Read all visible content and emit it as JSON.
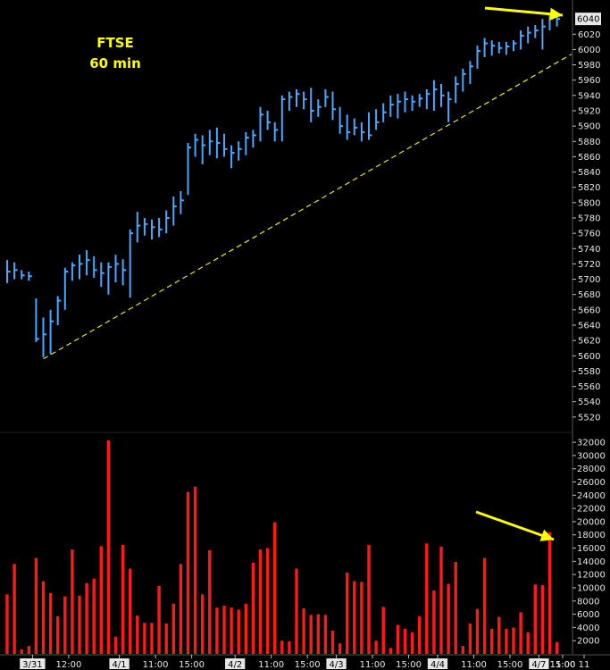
{
  "chart_data": [
    {
      "type": "bar",
      "title": "FTSE",
      "subtitle": "60 min",
      "ohlc_style": "hlc-bars",
      "ylim": [
        5500,
        6060
      ],
      "y_ticks": [
        5520,
        5540,
        5560,
        5580,
        5600,
        5620,
        5640,
        5660,
        5680,
        5700,
        5720,
        5740,
        5760,
        5780,
        5800,
        5820,
        5840,
        5860,
        5880,
        5900,
        5920,
        5940,
        5960,
        5980,
        6000,
        6020
      ],
      "last_price_label": "6040",
      "series": [
        {
          "values": [
            {
              "high": 5725,
              "low": 5695,
              "close": 5710
            },
            {
              "high": 5722,
              "low": 5700,
              "close": 5712
            },
            {
              "high": 5712,
              "low": 5700,
              "close": 5705
            },
            {
              "high": 5710,
              "low": 5698,
              "close": 5704
            },
            {
              "high": 5675,
              "low": 5618,
              "close": 5622
            },
            {
              "high": 5650,
              "low": 5598,
              "close": 5628
            },
            {
              "high": 5660,
              "low": 5602,
              "close": 5645
            },
            {
              "high": 5678,
              "low": 5640,
              "close": 5672
            },
            {
              "high": 5715,
              "low": 5660,
              "close": 5710
            },
            {
              "high": 5722,
              "low": 5698,
              "close": 5718
            },
            {
              "high": 5732,
              "low": 5700,
              "close": 5720
            },
            {
              "high": 5738,
              "low": 5705,
              "close": 5725
            },
            {
              "high": 5730,
              "low": 5702,
              "close": 5712
            },
            {
              "high": 5722,
              "low": 5690,
              "close": 5708
            },
            {
              "high": 5722,
              "low": 5680,
              "close": 5716
            },
            {
              "high": 5732,
              "low": 5696,
              "close": 5720
            },
            {
              "high": 5726,
              "low": 5692,
              "close": 5712
            },
            {
              "high": 5765,
              "low": 5676,
              "close": 5760
            },
            {
              "high": 5788,
              "low": 5748,
              "close": 5770
            },
            {
              "high": 5780,
              "low": 5757,
              "close": 5772
            },
            {
              "high": 5778,
              "low": 5752,
              "close": 5768
            },
            {
              "high": 5780,
              "low": 5755,
              "close": 5765
            },
            {
              "high": 5790,
              "low": 5760,
              "close": 5780
            },
            {
              "high": 5808,
              "low": 5770,
              "close": 5795
            },
            {
              "high": 5815,
              "low": 5785,
              "close": 5803
            },
            {
              "high": 5878,
              "low": 5810,
              "close": 5872
            },
            {
              "high": 5890,
              "low": 5860,
              "close": 5882
            },
            {
              "high": 5888,
              "low": 5850,
              "close": 5875
            },
            {
              "high": 5895,
              "low": 5862,
              "close": 5880
            },
            {
              "high": 5898,
              "low": 5858,
              "close": 5878
            },
            {
              "high": 5890,
              "low": 5860,
              "close": 5870
            },
            {
              "high": 5875,
              "low": 5845,
              "close": 5865
            },
            {
              "high": 5880,
              "low": 5855,
              "close": 5870
            },
            {
              "high": 5892,
              "low": 5862,
              "close": 5885
            },
            {
              "high": 5895,
              "low": 5872,
              "close": 5888
            },
            {
              "high": 5925,
              "low": 5880,
              "close": 5915
            },
            {
              "high": 5920,
              "low": 5895,
              "close": 5905
            },
            {
              "high": 5905,
              "low": 5880,
              "close": 5895
            },
            {
              "high": 5940,
              "low": 5880,
              "close": 5935
            },
            {
              "high": 5945,
              "low": 5920,
              "close": 5938
            },
            {
              "high": 5948,
              "low": 5925,
              "close": 5942
            },
            {
              "high": 5945,
              "low": 5922,
              "close": 5935
            },
            {
              "high": 5950,
              "low": 5905,
              "close": 5920
            },
            {
              "high": 5935,
              "low": 5912,
              "close": 5925
            },
            {
              "high": 5948,
              "low": 5925,
              "close": 5938
            },
            {
              "high": 5945,
              "low": 5908,
              "close": 5922
            },
            {
              "high": 5925,
              "low": 5890,
              "close": 5900
            },
            {
              "high": 5915,
              "low": 5882,
              "close": 5892
            },
            {
              "high": 5910,
              "low": 5888,
              "close": 5898
            },
            {
              "high": 5905,
              "low": 5880,
              "close": 5892
            },
            {
              "high": 5918,
              "low": 5882,
              "close": 5888
            },
            {
              "high": 5922,
              "low": 5895,
              "close": 5905
            },
            {
              "high": 5930,
              "low": 5905,
              "close": 5918
            },
            {
              "high": 5940,
              "low": 5912,
              "close": 5928
            },
            {
              "high": 5942,
              "low": 5910,
              "close": 5932
            },
            {
              "high": 5945,
              "low": 5918,
              "close": 5935
            },
            {
              "high": 5940,
              "low": 5920,
              "close": 5932
            },
            {
              "high": 5942,
              "low": 5925,
              "close": 5936
            },
            {
              "high": 5948,
              "low": 5922,
              "close": 5942
            },
            {
              "high": 5960,
              "low": 5920,
              "close": 5948
            },
            {
              "high": 5955,
              "low": 5925,
              "close": 5940
            },
            {
              "high": 5945,
              "low": 5905,
              "close": 5935
            },
            {
              "high": 5965,
              "low": 5930,
              "close": 5955
            },
            {
              "high": 5975,
              "low": 5945,
              "close": 5968
            },
            {
              "high": 5985,
              "low": 5955,
              "close": 5978
            },
            {
              "high": 6005,
              "low": 5975,
              "close": 5998
            },
            {
              "high": 6015,
              "low": 5990,
              "close": 6008
            },
            {
              "high": 6012,
              "low": 5992,
              "close": 6005
            },
            {
              "high": 6010,
              "low": 5995,
              "close": 6002
            },
            {
              "high": 6010,
              "low": 5993,
              "close": 6004
            },
            {
              "high": 6012,
              "low": 5998,
              "close": 6008
            },
            {
              "high": 6025,
              "low": 6000,
              "close": 6018
            },
            {
              "high": 6030,
              "low": 6008,
              "close": 6022
            },
            {
              "high": 6032,
              "low": 6015,
              "close": 6025
            },
            {
              "high": 6040,
              "low": 6000,
              "close": 6030
            },
            {
              "high": 6045,
              "low": 6025,
              "close": 6040
            },
            {
              "high": 6046,
              "low": 6030,
              "close": 6040
            }
          ]
        }
      ],
      "trendline": {
        "from": {
          "bar": 5,
          "price": 5596
        },
        "to": {
          "bar": 76,
          "price": 5983
        },
        "color": "#e8e800",
        "style": "dashed"
      }
    },
    {
      "type": "bar",
      "ylim": [
        0,
        33500
      ],
      "y_ticks": [
        2000,
        4000,
        6000,
        8000,
        10000,
        12000,
        14000,
        16000,
        18000,
        20000,
        22000,
        24000,
        26000,
        28000,
        30000,
        32000
      ],
      "series": [
        {
          "values": [
            9000,
            13600,
            700,
            1200,
            14500,
            11000,
            9200,
            5700,
            8700,
            15800,
            8800,
            10700,
            11400,
            16300,
            32300,
            2600,
            16500,
            12900,
            5800,
            4700,
            4700,
            10300,
            4600,
            7600,
            13600,
            24500,
            25300,
            9000,
            15700,
            7000,
            7300,
            7000,
            6700,
            7600,
            13800,
            15800,
            16000,
            19900,
            2000,
            1900,
            12900,
            6900,
            5900,
            6000,
            5900,
            3500,
            1600,
            12300,
            11000,
            10900,
            16500,
            2000,
            7100,
            900,
            4400,
            3800,
            3300,
            5700,
            16700,
            9600,
            16200,
            10600,
            13900,
            1200,
            4600,
            6800,
            14500,
            3800,
            5600,
            3800,
            4000,
            6300,
            3300,
            10500,
            10400,
            18400,
            1800
          ]
        }
      ],
      "x_tick_labels": [
        "3/31",
        "12:00",
        "4/1",
        "11:00",
        "15:00",
        "4/2",
        "11:00",
        "15:00",
        "4/3",
        "11:00",
        "15:00",
        "4/4",
        "11:00",
        "15:00",
        "4/7",
        "11:00",
        "15:00",
        "11"
      ],
      "date_labels": [
        "3/31",
        "4/1",
        "4/2",
        "4/3",
        "4/4",
        "4/7"
      ]
    }
  ],
  "colors": {
    "background": "#000000",
    "price_bars": "#4aa8ff",
    "volume_bars": "#ff1a1a",
    "title": "#ffff00",
    "axis_text": "#e6e6e6",
    "trendline": "#e8e800",
    "arrows": "#ffff00"
  }
}
